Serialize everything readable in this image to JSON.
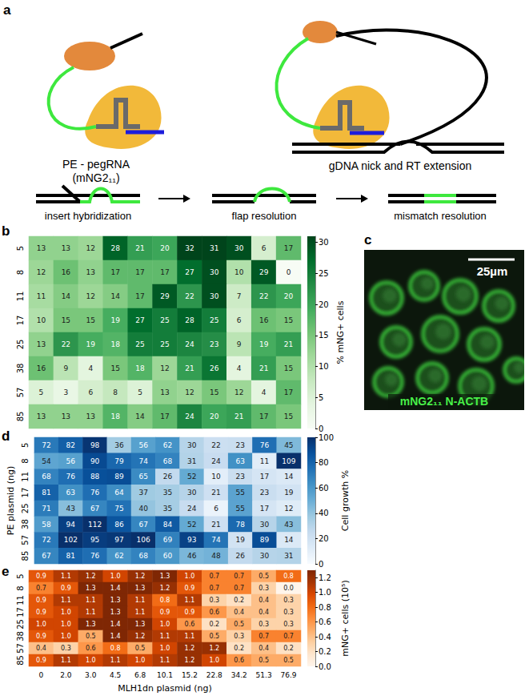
{
  "panels": [
    {
      "letter": "a",
      "type": "diagram",
      "labels": {
        "left": [
          "PE - pegRNA",
          "(mNG2₁₁)"
        ],
        "right": "gDNA nick and RT extension",
        "steps": [
          "insert hybridization",
          "flap resolution",
          "mismatch resolution"
        ]
      }
    },
    {
      "letter": "c",
      "type": "image",
      "scale_bar": "25µm",
      "caption": "mNG2₁₁ N-ACTB"
    }
  ],
  "chart_data": [
    {
      "type": "heatmap",
      "letter": "b",
      "color": "Greens",
      "tick_labels": "y",
      "x": [
        "0",
        "2.0",
        "3.0",
        "4.5",
        "6.8",
        "10.1",
        "15.2",
        "22.8",
        "34.2",
        "51.3",
        "76.9"
      ],
      "y": [
        "5",
        "8",
        "11",
        "17",
        "25",
        "38",
        "57",
        "85"
      ],
      "values": [
        [
          13,
          13,
          12,
          28,
          21,
          20,
          32,
          31,
          30,
          6,
          17
        ],
        [
          12,
          16,
          13,
          17,
          17,
          17,
          27,
          30,
          10,
          29,
          0
        ],
        [
          11,
          14,
          12,
          14,
          17,
          29,
          22,
          30,
          7,
          22,
          20
        ],
        [
          10,
          15,
          15,
          19,
          27,
          25,
          28,
          25,
          6,
          16,
          15
        ],
        [
          13,
          22,
          19,
          18,
          25,
          25,
          24,
          23,
          9,
          19,
          21
        ],
        [
          16,
          9,
          4,
          15,
          18,
          12,
          21,
          26,
          4,
          21,
          15
        ],
        [
          5,
          3,
          6,
          8,
          5,
          13,
          12,
          15,
          12,
          4,
          17
        ],
        [
          13,
          13,
          13,
          18,
          14,
          17,
          24,
          20,
          21,
          17,
          15
        ]
      ],
      "colorbar": {
        "title": "% mNG+ cells",
        "range": [
          0,
          31
        ],
        "ticks": [
          0,
          5,
          10,
          15,
          20,
          25,
          30
        ]
      }
    },
    {
      "type": "heatmap",
      "letter": "d",
      "color": "Blues",
      "tick_labels": "y",
      "ylabel": "PE plasmid (ng)",
      "x": [
        "0",
        "2.0",
        "3.0",
        "4.5",
        "6.8",
        "10.1",
        "15.2",
        "22.8",
        "34.2",
        "51.3",
        "76.9"
      ],
      "y": [
        "5",
        "8",
        "11",
        "17",
        "25",
        "38",
        "57",
        "85"
      ],
      "values": [
        [
          72,
          82,
          98,
          36,
          56,
          62,
          30,
          22,
          23,
          76,
          45
        ],
        [
          54,
          56,
          90,
          79,
          74,
          68,
          31,
          24,
          63,
          11,
          109
        ],
        [
          68,
          76,
          88,
          89,
          65,
          26,
          52,
          10,
          23,
          17,
          14
        ],
        [
          81,
          63,
          76,
          64,
          37,
          35,
          30,
          21,
          55,
          23,
          19
        ],
        [
          71,
          43,
          67,
          75,
          40,
          35,
          24,
          6,
          55,
          17,
          12
        ],
        [
          58,
          94,
          112,
          86,
          67,
          84,
          52,
          21,
          78,
          30,
          43
        ],
        [
          72,
          102,
          95,
          97,
          106,
          69,
          93,
          74,
          19,
          89,
          14
        ],
        [
          67,
          81,
          76,
          62,
          68,
          60,
          46,
          48,
          26,
          30,
          31
        ]
      ],
      "colorbar": {
        "title": "Cell growth %",
        "range": [
          0,
          100
        ],
        "ticks": [
          0,
          20,
          40,
          60,
          80,
          100
        ]
      }
    },
    {
      "type": "heatmap",
      "letter": "e",
      "color": "Oranges",
      "xlabel": "MLH1dn plasmid (ng)",
      "x": [
        "0",
        "2.0",
        "3.0",
        "4.5",
        "6.8",
        "10.1",
        "15.2",
        "22.8",
        "34.2",
        "51.3",
        "76.9"
      ],
      "y": [
        "5",
        "8",
        "11",
        "17",
        "25",
        "38",
        "57",
        "85"
      ],
      "values": [
        [
          0.9,
          1.1,
          1.2,
          1.0,
          1.2,
          1.3,
          1.0,
          0.7,
          0.7,
          0.5,
          0.8
        ],
        [
          0.7,
          0.9,
          1.3,
          1.4,
          1.3,
          1.2,
          0.9,
          0.7,
          0.7,
          0.3,
          0.0
        ],
        [
          0.9,
          1.1,
          1.1,
          1.3,
          1.1,
          0.8,
          1.1,
          0.3,
          0.2,
          0.4,
          0.3
        ],
        [
          0.9,
          1.0,
          1.1,
          1.3,
          1.1,
          0.9,
          0.9,
          0.6,
          0.4,
          0.4,
          0.3
        ],
        [
          1.0,
          1.0,
          1.3,
          1.4,
          1.3,
          1.0,
          0.6,
          0.2,
          0.5,
          0.3,
          0.3
        ],
        [
          0.9,
          1.0,
          0.5,
          1.4,
          1.2,
          1.1,
          1.1,
          0.5,
          0.3,
          0.7,
          0.7
        ],
        [
          0.4,
          0.3,
          0.6,
          0.8,
          0.5,
          1.0,
          1.2,
          1.2,
          0.2,
          0.4,
          0.2
        ],
        [
          0.9,
          1.1,
          1.0,
          1.1,
          1.0,
          1.1,
          1.2,
          1.0,
          0.6,
          0.5,
          0.5
        ]
      ],
      "value_labels": [
        [
          "0.9",
          "1.1",
          "1.2",
          "1.0",
          "1.2",
          "1.3",
          "1.0",
          "0.7",
          "0.7",
          "0.5",
          "0.8"
        ],
        [
          "0.7",
          "0.9",
          "1.3",
          "1.4",
          "1.3",
          "1.2",
          "0.9",
          "0.7",
          "0.7",
          "0.3",
          "0.0"
        ],
        [
          "0.9",
          "1.1",
          "1.1",
          "1.3",
          "1.1",
          "0.8",
          "1.1",
          "0.3",
          "0.2",
          "0.4",
          "0.3"
        ],
        [
          "0.9",
          "1.0",
          "1.1",
          "1.3",
          "1.1",
          "0.9",
          "0.9",
          "0.6",
          "0.4",
          "0.4",
          "0.3"
        ],
        [
          "1.0",
          "1.0",
          "1.3",
          "1.4",
          "1.3",
          "1.0",
          "0.6",
          "0.2",
          "0.5",
          "0.3",
          "0.3"
        ],
        [
          "0.9",
          "1.0",
          "0.5",
          "1.4",
          "1.2",
          "1.1",
          "1.1",
          "0.5",
          "0.3",
          "0.7",
          "0.7"
        ],
        [
          "0.4",
          "0.3",
          "0.6",
          "0.8",
          "0.5",
          "1.0",
          "1.2",
          "1.2",
          "0.2",
          "0.4",
          "0.2"
        ],
        [
          "0.9",
          "1.1",
          "1.0",
          "1.1",
          "1.0",
          "1.1",
          "1.2",
          "1.0",
          "0.6",
          "0.5",
          "0.5"
        ]
      ],
      "colorbar": {
        "title": "mNG+ cells (10⁵)",
        "range": [
          0,
          1.3
        ],
        "ticks": [
          {
            "value": 0,
            "label": "0.0"
          },
          0.2,
          0.4,
          0.6,
          0.8,
          {
            "value": 1,
            "label": "1.0"
          },
          1.2
        ]
      }
    }
  ]
}
